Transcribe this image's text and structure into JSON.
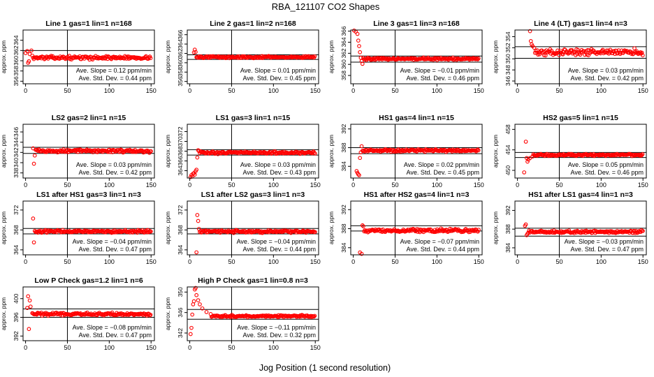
{
  "figure": {
    "title": "RBA_121107  CO2 Shapes",
    "xlabel": "Jog Position (1 second resolution)"
  },
  "colors": {
    "points": "#ff0000",
    "axes": "#000000",
    "background": "#ffffff"
  },
  "chart_data": [
    {
      "type": "scatter",
      "title": "Line 1 gas=1 lin=1 n=168",
      "ylabel": "approx. ppm",
      "xlim": [
        -3,
        154
      ],
      "ylim": [
        355.5,
        366
      ],
      "xticks": [
        0,
        50,
        100,
        150
      ],
      "yticks": [
        356,
        358,
        360,
        362,
        364
      ],
      "hlines": [
        362.0,
        359.0
      ],
      "vline": 50,
      "level": 360.6,
      "noise": 0.18,
      "shape": [
        [
          0,
          361.5
        ],
        [
          2,
          361.9
        ],
        [
          3,
          359.6
        ],
        [
          4,
          359.9
        ],
        [
          5,
          361.3
        ],
        [
          7,
          362.0
        ],
        [
          8,
          361.0
        ]
      ],
      "annotation_slope": "Ave. Slope = 0.12  ppm/min",
      "annotation_std": "Ave. Std. Dev. = 0.44  ppm"
    },
    {
      "type": "scatter",
      "title": "Line 2 gas=1 lin=2 n=168",
      "ylabel": "approx. ppm",
      "xlim": [
        -3,
        154
      ],
      "ylim": [
        355.5,
        367
      ],
      "xticks": [
        0,
        50,
        100,
        150
      ],
      "yticks": [
        356,
        358,
        360,
        362,
        364,
        366
      ],
      "hlines": [
        361.7,
        360.7
      ],
      "vline": 50,
      "level": 361.2,
      "noise": 0.12,
      "shape": [
        [
          5,
          362.2
        ],
        [
          6,
          362.8
        ],
        [
          7,
          362.3
        ]
      ],
      "annotation_slope": "Ave. Slope = 0.01  ppm/min",
      "annotation_std": "Ave. Std. Dev. = 0.45  ppm"
    },
    {
      "type": "scatter",
      "title": "Line 3 gas=1 lin=3 n=168",
      "ylabel": "approx. ppm",
      "xlim": [
        -3,
        154
      ],
      "ylim": [
        356.5,
        366.2
      ],
      "xticks": [
        0,
        50,
        100,
        150
      ],
      "yticks": [
        358,
        360,
        362,
        364,
        366
      ],
      "hlines": [
        361.5,
        360.4
      ],
      "vline": 50,
      "level": 361.0,
      "noise": 0.12,
      "shape": [
        [
          1,
          366.1
        ],
        [
          3,
          365.9
        ],
        [
          5,
          365.5
        ],
        [
          6,
          364.3
        ],
        [
          7,
          363.3
        ],
        [
          8,
          362.2
        ],
        [
          9,
          361.2
        ],
        [
          10,
          360.6
        ],
        [
          11,
          360.1
        ]
      ],
      "annotation_slope": "Ave. Slope = −0.01  ppm/min",
      "annotation_std": "Ave. Std. Dev. = 0.46  ppm"
    },
    {
      "type": "scatter",
      "title": "Line 4 (LT) gas=1 lin=4 n=3",
      "ylabel": "approx. ppm",
      "xlim": [
        -3,
        154
      ],
      "ylim": [
        345.5,
        355.2
      ],
      "xticks": [
        0,
        50,
        100,
        150
      ],
      "yticks": [
        346,
        348,
        350,
        352,
        354
      ],
      "hlines": [
        352.2,
        350.1
      ],
      "vline": 50,
      "level": 351.2,
      "noise": 0.35,
      "xstart": 15,
      "shape": [
        [
          15,
          355.0
        ],
        [
          16,
          353.2
        ],
        [
          17,
          352.6
        ],
        [
          18,
          352.3
        ],
        [
          20,
          352.0
        ]
      ],
      "annotation_slope": "Ave. Slope = 0.03  ppm/min",
      "annotation_std": "Ave. Std. Dev. = 0.42  ppm"
    },
    {
      "type": "scatter",
      "title": "LS2 gas=2 lin=1 n=15",
      "ylabel": "approx. ppm",
      "xlim": [
        -3,
        154
      ],
      "ylim": [
        337,
        347.5
      ],
      "xticks": [
        0,
        50,
        100,
        150
      ],
      "yticks": [
        338,
        340,
        342,
        344,
        346
      ],
      "hlines": [
        343.0,
        341.8
      ],
      "vline": 50,
      "level": 342.3,
      "noise": 0.18,
      "xstart": 9,
      "shape": [
        [
          9,
          342.8
        ],
        [
          10,
          339.8
        ],
        [
          11,
          341.4
        ],
        [
          12,
          342.5
        ]
      ],
      "annotation_slope": "Ave. Slope = 0.03  ppm/min",
      "annotation_std": "Ave. Std. Dev. = 0.42  ppm"
    },
    {
      "type": "scatter",
      "title": "LS1 gas=3 lin=1 n=15",
      "ylabel": "approx. ppm",
      "xlim": [
        -3,
        154
      ],
      "ylim": [
        362.5,
        373.5
      ],
      "xticks": [
        0,
        50,
        100,
        150
      ],
      "yticks": [
        364,
        366,
        368,
        370,
        372
      ],
      "hlines": [
        368.3,
        367.2
      ],
      "vline": 50,
      "level": 367.7,
      "noise": 0.15,
      "xstart": 1,
      "shape": [
        [
          1,
          362.7
        ],
        [
          2,
          363.1
        ],
        [
          3,
          362.8
        ],
        [
          4,
          363.4
        ],
        [
          5,
          363.5
        ],
        [
          6,
          363.2
        ],
        [
          7,
          363.9
        ],
        [
          8,
          364.2
        ],
        [
          9,
          366.7
        ],
        [
          10,
          368.2
        ],
        [
          11,
          368.0
        ]
      ],
      "annotation_slope": "Ave. Slope = 0.03  ppm/min",
      "annotation_std": "Ave. Std. Dev. = 0.43  ppm"
    },
    {
      "type": "scatter",
      "title": "HS1 gas=4 lin=1 n=15",
      "ylabel": "approx. ppm",
      "xlim": [
        -3,
        154
      ],
      "ylim": [
        381.5,
        393
      ],
      "xticks": [
        0,
        50,
        100,
        150
      ],
      "yticks": [
        384,
        388,
        392
      ],
      "hlines": [
        388.0,
        386.7
      ],
      "vline": 50,
      "level": 387.4,
      "noise": 0.15,
      "xstart": 4,
      "shape": [
        [
          4,
          383.0
        ],
        [
          5,
          382.6
        ],
        [
          6,
          382.3
        ],
        [
          7,
          382.1
        ],
        [
          8,
          385.8
        ],
        [
          9,
          387.0
        ],
        [
          10,
          388.3
        ]
      ],
      "annotation_slope": "Ave. Slope = 0.02  ppm/min",
      "annotation_std": "Ave. Std. Dev. = 0.45  ppm"
    },
    {
      "type": "scatter",
      "title": "HS2 gas=5 lin=1 n=15",
      "ylabel": "approx. ppm",
      "xlim": [
        -3,
        154
      ],
      "ylim": [
        448.5,
        459
      ],
      "xticks": [
        0,
        50,
        100,
        150
      ],
      "yticks": [
        450,
        454,
        458
      ],
      "hlines": [
        453.5,
        452.5
      ],
      "vline": 50,
      "level": 453.0,
      "noise": 0.12,
      "xstart": 8,
      "shape": [
        [
          8,
          449.6
        ],
        [
          10,
          455.6
        ],
        [
          11,
          452.4
        ],
        [
          12,
          451.7
        ],
        [
          13,
          452.1
        ],
        [
          15,
          452.4
        ],
        [
          18,
          452.7
        ]
      ],
      "annotation_slope": "Ave. Slope = 0.05  ppm/min",
      "annotation_std": "Ave. Std. Dev. = 0.46  ppm"
    },
    {
      "type": "scatter",
      "title": "LS1 after HS1 gas=3 lin=1 n=3",
      "ylabel": "approx. ppm",
      "xlim": [
        -3,
        154
      ],
      "ylim": [
        363,
        373.8
      ],
      "xticks": [
        0,
        50,
        100,
        150
      ],
      "yticks": [
        364,
        368,
        372
      ],
      "hlines": [
        368.3,
        367.2
      ],
      "vline": 50,
      "level": 367.7,
      "noise": 0.15,
      "xstart": 9,
      "shape": [
        [
          9,
          370.3
        ],
        [
          10,
          365.5
        ],
        [
          11,
          367.8
        ]
      ],
      "annotation_slope": "Ave. Slope = −0.04  ppm/min",
      "annotation_std": "Ave. Std. Dev. = 0.47  ppm"
    },
    {
      "type": "scatter",
      "title": "LS1 after LS2 gas=3 lin=1 n=3",
      "ylabel": "approx. ppm",
      "xlim": [
        -3,
        154
      ],
      "ylim": [
        363,
        373.8
      ],
      "xticks": [
        0,
        50,
        100,
        150
      ],
      "yticks": [
        364,
        368,
        372
      ],
      "hlines": [
        368.3,
        367.2
      ],
      "vline": 50,
      "level": 367.7,
      "noise": 0.15,
      "xstart": 8,
      "shape": [
        [
          8,
          363.5
        ],
        [
          9,
          371.0
        ],
        [
          10,
          369.8
        ],
        [
          11,
          368.2
        ]
      ],
      "annotation_slope": "Ave. Slope = −0.04  ppm/min",
      "annotation_std": "Ave. Std. Dev. = 0.44  ppm"
    },
    {
      "type": "scatter",
      "title": "HS1 after HS2 gas=4 lin=1 n=3",
      "ylabel": "approx. ppm",
      "xlim": [
        -3,
        154
      ],
      "ylim": [
        382.5,
        393.8
      ],
      "xticks": [
        0,
        50,
        100,
        150
      ],
      "yticks": [
        384,
        388,
        392
      ],
      "hlines": [
        388.6,
        387.5
      ],
      "vline": 50,
      "level": 387.6,
      "noise": 0.2,
      "xstart": 8,
      "shape": [
        [
          8,
          383.0
        ],
        [
          10,
          382.7
        ],
        [
          11,
          388.7
        ],
        [
          12,
          388.5
        ]
      ],
      "annotation_slope": "Ave. Slope = −0.07  ppm/min",
      "annotation_std": "Ave. Std. Dev. = 0.44  ppm"
    },
    {
      "type": "scatter",
      "title": "HS1 after LS1 gas=4 lin=1 n=3",
      "ylabel": "approx. ppm",
      "xlim": [
        -3,
        154
      ],
      "ylim": [
        382.5,
        394
      ],
      "xticks": [
        0,
        50,
        100,
        150
      ],
      "yticks": [
        384,
        388,
        392
      ],
      "hlines": [
        388.2,
        386.5
      ],
      "vline": 50,
      "level": 387.4,
      "noise": 0.18,
      "xstart": 9,
      "shape": [
        [
          9,
          388.7
        ],
        [
          10,
          389.0
        ],
        [
          11,
          386.7
        ],
        [
          12,
          387.0
        ]
      ],
      "annotation_slope": "Ave. Slope = −0.03  ppm/min",
      "annotation_std": "Ave. Std. Dev. = 0.47  ppm"
    },
    {
      "type": "scatter",
      "title": "Low P Check gas=1.2 lin=1 n=6",
      "ylabel": "approx. ppm",
      "xlim": [
        -3,
        154
      ],
      "ylim": [
        391,
        402.5
      ],
      "xticks": [
        0,
        50,
        100,
        150
      ],
      "yticks": [
        392,
        396,
        400
      ],
      "hlines": [
        397.8,
        396.0
      ],
      "vline": 50,
      "level": 396.7,
      "noise": 0.18,
      "xstart": 2,
      "shape": [
        [
          2,
          398.0
        ],
        [
          3,
          400.5
        ],
        [
          4,
          393.5
        ],
        [
          5,
          399.6
        ],
        [
          6,
          398.3
        ],
        [
          8,
          396.9
        ]
      ],
      "annotation_slope": "Ave. Slope = −0.08  ppm/min",
      "annotation_std": "Ave. Std. Dev. = 0.47  ppm"
    },
    {
      "type": "scatter",
      "title": "High P Check gas=1 lin=0.8 n=3",
      "ylabel": "approx. ppm",
      "xlim": [
        -3,
        154
      ],
      "ylim": [
        340.5,
        351
      ],
      "xticks": [
        0,
        50,
        100,
        150
      ],
      "yticks": [
        342,
        346,
        350
      ],
      "hlines": [
        346.6,
        344.7
      ],
      "vline": 50,
      "level": 345.3,
      "noise": 0.12,
      "xstart": 1,
      "shape": [
        [
          1,
          341.8
        ],
        [
          2,
          343.0
        ],
        [
          3,
          345.6
        ],
        [
          4,
          347.6
        ],
        [
          5,
          348.2
        ],
        [
          6,
          350.5
        ],
        [
          7,
          350.8
        ],
        [
          8,
          349.4
        ],
        [
          10,
          348.4
        ],
        [
          12,
          347.6
        ],
        [
          15,
          346.8
        ],
        [
          20,
          346.1
        ],
        [
          25,
          345.7
        ]
      ],
      "annotation_slope": "Ave. Slope = −0.11  ppm/min",
      "annotation_std": "Ave. Std. Dev. = 0.32  ppm"
    }
  ]
}
